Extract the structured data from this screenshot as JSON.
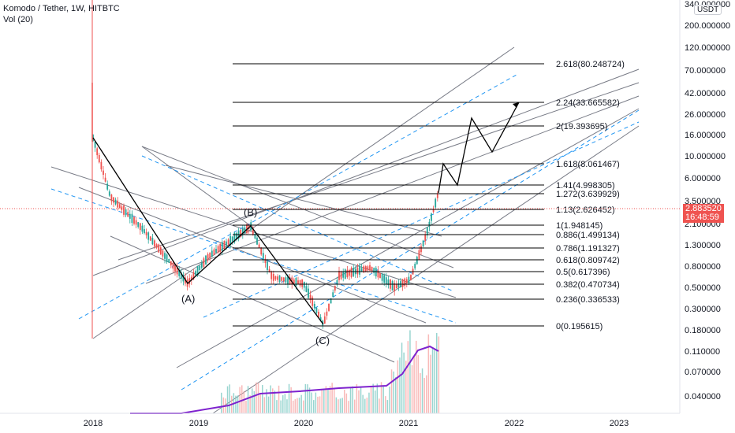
{
  "header": {
    "title": "Komodo / Tether, 1W, HITBTC",
    "volume_label": "Vol (20)",
    "currency": "USDT"
  },
  "price_axis": {
    "ticks": [
      "340.000000",
      "200.000000",
      "120.000000",
      "70.000000",
      "42.000000",
      "26.000000",
      "16.000000",
      "10.000000",
      "6.000000",
      "3.500000",
      "2.100000",
      "1.300000",
      "0.800000",
      "0.500000",
      "0.300000",
      "0.180000",
      "0.110000",
      "0.070000",
      "0.040000"
    ],
    "current_price": "2.883520",
    "countdown": "16:48:59"
  },
  "time_axis": {
    "ticks": [
      "2018",
      "2019",
      "2020",
      "2021",
      "2022",
      "2023"
    ]
  },
  "fib_levels": [
    {
      "label": "2.618(80.248724)"
    },
    {
      "label": "2.24(33.665582)"
    },
    {
      "label": "2(19.393695)"
    },
    {
      "label": "1.618(8.061467)"
    },
    {
      "label": "1.41(4.998305)"
    },
    {
      "label": "1.272(3.639929)"
    },
    {
      "label": "1.13(2.626452)"
    },
    {
      "label": "1(1.948145)"
    },
    {
      "label": "0.886(1.499134)"
    },
    {
      "label": "0.786(1.191327)"
    },
    {
      "label": "0.618(0.809742)"
    },
    {
      "label": "0.5(0.617396)"
    },
    {
      "label": "0.382(0.470734)"
    },
    {
      "label": "0.236(0.336533)"
    },
    {
      "label": "0(0.195615)"
    }
  ],
  "wave_labels": [
    "(A)",
    "(B)",
    "(C)"
  ],
  "colors": {
    "up": "#26a69a",
    "down": "#ef5350",
    "fib": "#000000",
    "channel": "#787b86",
    "dashed": "#2196f3",
    "volume_ma": "#7e22ce",
    "price_tag": "#ef5350"
  },
  "chart_data": {
    "type": "candlestick",
    "title": "Komodo / Tether, 1W, HITBTC",
    "y_scale": "log",
    "x_range": [
      "2018",
      "2023"
    ],
    "fib_values": [
      80.248724,
      33.665582,
      19.393695,
      8.061467,
      4.998305,
      3.639929,
      2.626452,
      1.948145,
      1.499134,
      1.191327,
      0.809742,
      0.617396,
      0.470734,
      0.336533,
      0.195615
    ],
    "fib_ratios": [
      2.618,
      2.24,
      2,
      1.618,
      1.41,
      1.272,
      1.13,
      1,
      0.886,
      0.786,
      0.618,
      0.5,
      0.382,
      0.236,
      0
    ],
    "current_price": 2.88352
  }
}
